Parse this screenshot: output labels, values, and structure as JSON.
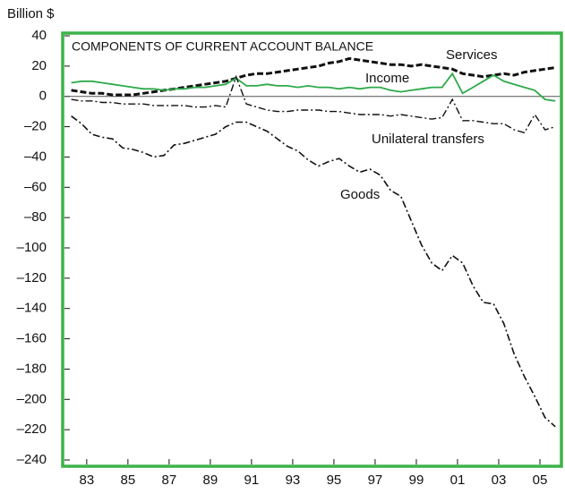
{
  "chart_data": {
    "type": "line",
    "title": "COMPONENTS OF CURRENT ACCOUNT BALANCE",
    "ylabel": "Billion $",
    "x": [
      1982.75,
      1983.25,
      1983.75,
      1984.25,
      1984.75,
      1985.25,
      1985.75,
      1986.25,
      1986.75,
      1987.25,
      1987.75,
      1988.25,
      1988.75,
      1989.25,
      1989.75,
      1990.25,
      1990.75,
      1991.25,
      1991.75,
      1992.25,
      1992.75,
      1993.25,
      1993.75,
      1994.25,
      1994.75,
      1995.25,
      1995.75,
      1996.25,
      1996.75,
      1997.25,
      1997.75,
      1998.25,
      1998.75,
      1999.25,
      1999.75,
      2000.25,
      2000.75,
      2001.25,
      2001.75,
      2002.25,
      2002.75,
      2003.25,
      2003.75,
      2004.25,
      2004.75,
      2005.25,
      2005.75,
      2006.25
    ],
    "series": [
      {
        "name": "Services",
        "color": "#111111",
        "line_style": "dashed",
        "values": [
          4,
          3,
          2,
          2,
          1,
          1,
          1,
          2,
          3,
          4,
          5,
          6,
          7,
          8,
          9,
          10,
          12,
          14,
          15,
          15,
          16,
          17,
          18,
          19,
          20,
          22,
          23,
          25,
          24,
          23,
          22,
          21,
          21,
          20,
          21,
          20,
          19,
          18,
          15,
          14,
          13,
          14,
          15,
          14,
          16,
          17,
          18,
          19
        ]
      },
      {
        "name": "Income",
        "color": "#2eaa4a",
        "line_style": "solid",
        "values": [
          9,
          10,
          10,
          9,
          8,
          7,
          6,
          5,
          5,
          4,
          5,
          5,
          6,
          6,
          7,
          8,
          12,
          7,
          7,
          8,
          7,
          7,
          6,
          7,
          6,
          6,
          5,
          6,
          5,
          6,
          6,
          4,
          3,
          4,
          5,
          6,
          6,
          15,
          2,
          6,
          10,
          14,
          10,
          8,
          6,
          4,
          -2,
          -3
        ]
      },
      {
        "name": "Unilateral transfers",
        "color": "#111111",
        "line_style": "dash-dot",
        "values": [
          -2,
          -3,
          -3,
          -4,
          -4,
          -5,
          -5,
          -5,
          -6,
          -6,
          -6,
          -6,
          -7,
          -7,
          -6,
          -7,
          13,
          -5,
          -7,
          -9,
          -10,
          -10,
          -9,
          -9,
          -9,
          -10,
          -10,
          -11,
          -12,
          -12,
          -12,
          -13,
          -12,
          -13,
          -14,
          -15,
          -14,
          -2,
          -16,
          -16,
          -17,
          -18,
          -18,
          -22,
          -24,
          -12,
          -22,
          -20
        ]
      },
      {
        "name": "Goods",
        "color": "#111111",
        "line_style": "dash-dot",
        "values": [
          -13,
          -18,
          -25,
          -27,
          -28,
          -34,
          -35,
          -37,
          -40,
          -39,
          -32,
          -31,
          -29,
          -27,
          -25,
          -20,
          -17,
          -17,
          -20,
          -23,
          -28,
          -33,
          -36,
          -42,
          -46,
          -43,
          -41,
          -46,
          -50,
          -48,
          -52,
          -62,
          -66,
          -82,
          -98,
          -110,
          -115,
          -105,
          -110,
          -125,
          -136,
          -137,
          -150,
          -170,
          -185,
          -198,
          -212,
          -218
        ]
      }
    ],
    "xlim": [
      1982.55,
      2006.5
    ],
    "xticks": [
      {
        "value": 1983.5,
        "label": "83"
      },
      {
        "value": 1985.5,
        "label": "85"
      },
      {
        "value": 1987.5,
        "label": "87"
      },
      {
        "value": 1989.5,
        "label": "89"
      },
      {
        "value": 1991.5,
        "label": "91"
      },
      {
        "value": 1993.5,
        "label": "93"
      },
      {
        "value": 1995.5,
        "label": "95"
      },
      {
        "value": 1997.5,
        "label": "97"
      },
      {
        "value": 1999.5,
        "label": "99"
      },
      {
        "value": 2001.5,
        "label": "01"
      },
      {
        "value": 2003.5,
        "label": "03"
      },
      {
        "value": 2005.5,
        "label": "05"
      }
    ],
    "ylim": [
      -240,
      40
    ],
    "yticks": [
      40,
      20,
      0,
      {
        "value": -20,
        "label": "–20"
      },
      {
        "value": -40,
        "label": "–40"
      },
      {
        "value": -60,
        "label": "–60"
      },
      {
        "value": -80,
        "label": "–80"
      },
      {
        "value": -100,
        "label": "–100"
      },
      {
        "value": -120,
        "label": "–120"
      },
      {
        "value": -140,
        "label": "–140"
      },
      {
        "value": -160,
        "label": "–160"
      },
      {
        "value": -180,
        "label": "–180"
      },
      {
        "value": -200,
        "label": "–200"
      },
      {
        "value": -220,
        "label": "–220"
      },
      {
        "value": -240,
        "label": "–240"
      }
    ],
    "frame_color": "#3cb34a"
  }
}
